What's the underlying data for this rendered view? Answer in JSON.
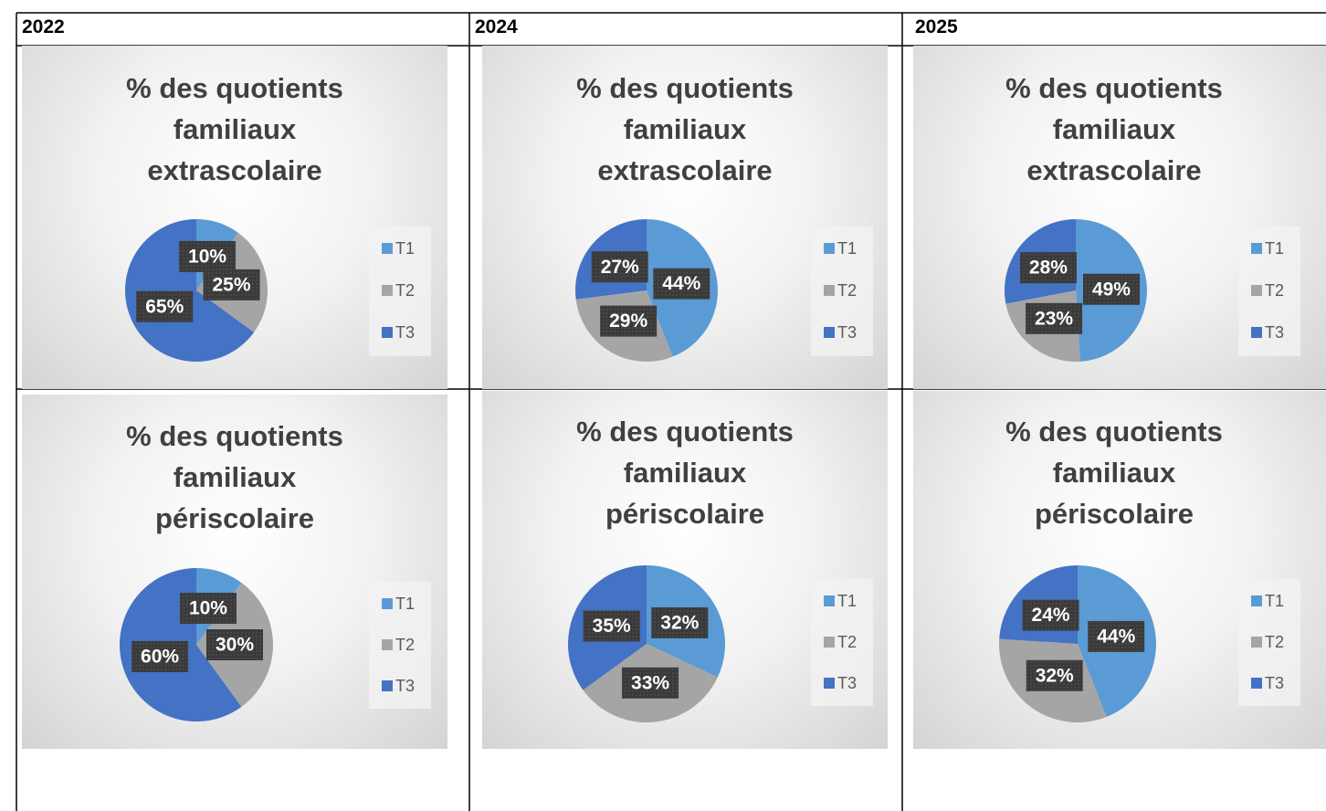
{
  "table": {
    "headers": [
      "2022",
      "2024",
      "2025"
    ]
  },
  "chart_data": [
    {
      "type": "pie",
      "title": "% des quotients familiaux extrascolaire",
      "categories": [
        "T1",
        "T2",
        "T3"
      ],
      "values": [
        10,
        25,
        65
      ],
      "value_labels": [
        "10%",
        "25%",
        "65%"
      ],
      "colors": [
        "#5b9bd5",
        "#a5a5a5",
        "#4472c4"
      ]
    },
    {
      "type": "pie",
      "title": "% des quotients familiaux extrascolaire",
      "categories": [
        "T1",
        "T2",
        "T3"
      ],
      "values": [
        44,
        29,
        27
      ],
      "value_labels": [
        "44%",
        "29%",
        "27%"
      ],
      "colors": [
        "#5b9bd5",
        "#a5a5a5",
        "#4472c4"
      ]
    },
    {
      "type": "pie",
      "title": "% des quotients familiaux extrascolaire",
      "categories": [
        "T1",
        "T2",
        "T3"
      ],
      "values": [
        49,
        23,
        28
      ],
      "value_labels": [
        "49%",
        "23%",
        "28%"
      ],
      "colors": [
        "#5b9bd5",
        "#a5a5a5",
        "#4472c4"
      ]
    },
    {
      "type": "pie",
      "title": "% des quotients familiaux périscolaire",
      "categories": [
        "T1",
        "T2",
        "T3"
      ],
      "values": [
        10,
        30,
        60
      ],
      "value_labels": [
        "10%",
        "30%",
        "60%"
      ],
      "colors": [
        "#5b9bd5",
        "#a5a5a5",
        "#4472c4"
      ]
    },
    {
      "type": "pie",
      "title": "% des quotients familiaux périscolaire",
      "categories": [
        "T1",
        "T2",
        "T3"
      ],
      "values": [
        32,
        33,
        35
      ],
      "value_labels": [
        "32%",
        "33%",
        "35%"
      ],
      "colors": [
        "#5b9bd5",
        "#a5a5a5",
        "#4472c4"
      ]
    },
    {
      "type": "pie",
      "title": "% des quotients familiaux périscolaire",
      "categories": [
        "T1",
        "T2",
        "T3"
      ],
      "values": [
        44,
        32,
        24
      ],
      "value_labels": [
        "44%",
        "32%",
        "24%"
      ],
      "colors": [
        "#5b9bd5",
        "#a5a5a5",
        "#4472c4"
      ]
    }
  ]
}
